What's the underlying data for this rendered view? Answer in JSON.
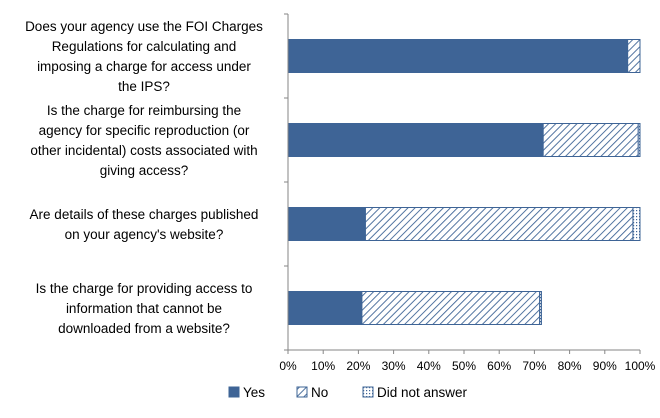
{
  "chart_data": {
    "type": "bar",
    "orientation": "horizontal",
    "stacked": true,
    "categories": [
      [
        "Does your agency use the FOI Charges",
        "Regulations for calculating and",
        "imposing a charge for access under",
        "the IPS?"
      ],
      [
        "Is the charge for reimbursing the",
        "agency for specific reproduction (or",
        "other incidental) costs associated with",
        "giving access?"
      ],
      [
        "Are details of these charges published",
        "on your agency's website?"
      ],
      [
        "Is the charge for providing access to",
        "information that cannot be",
        "downloaded from a website?"
      ]
    ],
    "series": [
      {
        "name": "Yes",
        "values": [
          96.5,
          72.5,
          22,
          21
        ],
        "color": "#3E6496",
        "pattern": "solid"
      },
      {
        "name": "No",
        "values": [
          3.5,
          27,
          76,
          50.5
        ],
        "color": "#3E6496",
        "pattern": "diagonal-hatch"
      },
      {
        "name": "Did not answer",
        "values": [
          0,
          0.5,
          2,
          0.5
        ],
        "color": "#3E6496",
        "pattern": "dotted"
      }
    ],
    "x_ticks": [
      "0%",
      "10%",
      "20%",
      "30%",
      "40%",
      "50%",
      "60%",
      "70%",
      "80%",
      "90%",
      "100%"
    ],
    "xlim": [
      0,
      100
    ],
    "grid": false,
    "legend_position": "bottom"
  }
}
